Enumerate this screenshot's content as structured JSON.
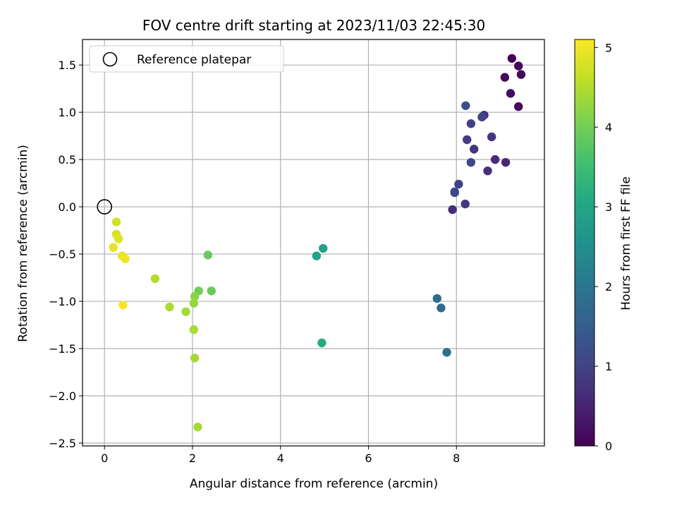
{
  "chart_data": {
    "type": "scatter",
    "title": "FOV centre drift starting at 2023/11/03 22:45:30",
    "xlabel": "Angular distance from reference (arcmin)",
    "ylabel": "Rotation from reference (arcmin)",
    "xlim": [
      -0.5,
      10.0
    ],
    "ylim": [
      -2.53,
      1.77
    ],
    "xticks": [
      0,
      2,
      4,
      6,
      8
    ],
    "yticks": [
      -2.5,
      -2.0,
      -1.5,
      -1.0,
      -0.5,
      0.0,
      0.5,
      1.0,
      1.5
    ],
    "xtick_labels": [
      "0",
      "2",
      "4",
      "6",
      "8"
    ],
    "ytick_labels": [
      "−2.5",
      "−2.0",
      "−1.5",
      "−1.0",
      "−0.5",
      "0.0",
      "0.5",
      "1.0",
      "1.5"
    ],
    "grid": true,
    "legend": {
      "position": "top-left",
      "entries": [
        "Reference platepar"
      ]
    },
    "reference_point": {
      "x": 0.0,
      "y": 0.0
    },
    "colorbar": {
      "label": "Hours from first FF file",
      "range": [
        0,
        5.1
      ],
      "ticks": [
        0,
        1,
        2,
        3,
        4,
        5
      ],
      "tick_labels": [
        "0",
        "1",
        "2",
        "3",
        "4",
        "5"
      ],
      "colormap": "viridis"
    },
    "points": [
      {
        "x": 9.26,
        "y": 1.57,
        "c": 0.05
      },
      {
        "x": 9.41,
        "y": 1.49,
        "c": 0.1
      },
      {
        "x": 9.47,
        "y": 1.4,
        "c": 0.12
      },
      {
        "x": 9.1,
        "y": 1.37,
        "c": 0.15
      },
      {
        "x": 9.23,
        "y": 1.2,
        "c": 0.18
      },
      {
        "x": 9.41,
        "y": 1.06,
        "c": 0.1
      },
      {
        "x": 8.21,
        "y": 1.07,
        "c": 1.2
      },
      {
        "x": 8.63,
        "y": 0.97,
        "c": 0.75
      },
      {
        "x": 8.58,
        "y": 0.95,
        "c": 1.05
      },
      {
        "x": 8.33,
        "y": 0.88,
        "c": 0.95
      },
      {
        "x": 8.8,
        "y": 0.74,
        "c": 0.75
      },
      {
        "x": 8.24,
        "y": 0.71,
        "c": 0.9
      },
      {
        "x": 8.4,
        "y": 0.61,
        "c": 0.8
      },
      {
        "x": 8.88,
        "y": 0.5,
        "c": 0.6
      },
      {
        "x": 9.12,
        "y": 0.47,
        "c": 0.55
      },
      {
        "x": 8.33,
        "y": 0.47,
        "c": 1.1
      },
      {
        "x": 8.71,
        "y": 0.38,
        "c": 0.7
      },
      {
        "x": 8.05,
        "y": 0.24,
        "c": 1.0
      },
      {
        "x": 7.96,
        "y": 0.16,
        "c": 1.6
      },
      {
        "x": 7.96,
        "y": 0.15,
        "c": 1.1
      },
      {
        "x": 8.2,
        "y": 0.03,
        "c": 0.85
      },
      {
        "x": 7.91,
        "y": -0.03,
        "c": 0.65
      },
      {
        "x": 7.56,
        "y": -0.97,
        "c": 1.8
      },
      {
        "x": 7.65,
        "y": -1.07,
        "c": 1.75
      },
      {
        "x": 7.78,
        "y": -1.54,
        "c": 1.85
      },
      {
        "x": 4.97,
        "y": -0.44,
        "c": 2.95
      },
      {
        "x": 4.82,
        "y": -0.52,
        "c": 3.0
      },
      {
        "x": 4.94,
        "y": -1.44,
        "c": 3.1
      },
      {
        "x": 2.35,
        "y": -0.51,
        "c": 3.9
      },
      {
        "x": 2.43,
        "y": -0.89,
        "c": 3.9
      },
      {
        "x": 2.14,
        "y": -0.89,
        "c": 4.0
      },
      {
        "x": 2.05,
        "y": -0.95,
        "c": 4.2
      },
      {
        "x": 2.03,
        "y": -1.02,
        "c": 4.3
      },
      {
        "x": 1.85,
        "y": -1.11,
        "c": 4.4
      },
      {
        "x": 1.48,
        "y": -1.06,
        "c": 4.45
      },
      {
        "x": 1.15,
        "y": -0.76,
        "c": 4.5
      },
      {
        "x": 2.03,
        "y": -1.3,
        "c": 4.45
      },
      {
        "x": 2.05,
        "y": -1.6,
        "c": 4.4
      },
      {
        "x": 2.12,
        "y": -2.33,
        "c": 4.4
      },
      {
        "x": 0.27,
        "y": -0.16,
        "c": 4.75
      },
      {
        "x": 0.27,
        "y": -0.29,
        "c": 4.8
      },
      {
        "x": 0.32,
        "y": -0.34,
        "c": 4.85
      },
      {
        "x": 0.2,
        "y": -0.43,
        "c": 4.9
      },
      {
        "x": 0.4,
        "y": -0.52,
        "c": 4.95
      },
      {
        "x": 0.47,
        "y": -0.55,
        "c": 5.0
      },
      {
        "x": 0.42,
        "y": -1.04,
        "c": 5.05
      }
    ]
  }
}
